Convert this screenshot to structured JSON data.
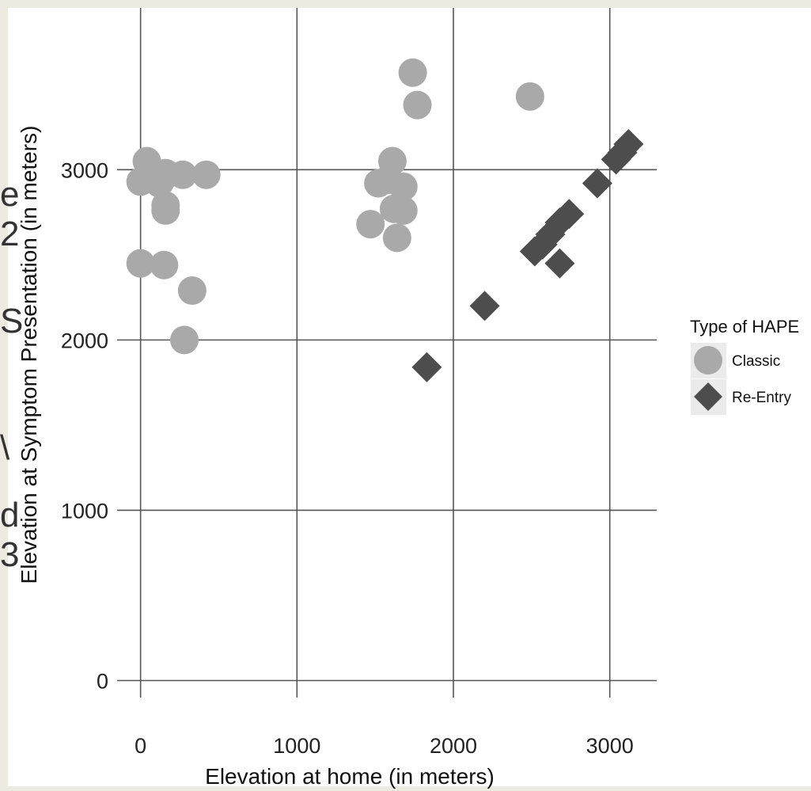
{
  "chart_data": {
    "type": "scatter",
    "title": "",
    "xlabel": "Elevation at home (in meters)",
    "ylabel": "Elevation at Symptom Presentation (in meters)",
    "xlim": [
      -150,
      3300
    ],
    "ylim": [
      -100,
      3950
    ],
    "xticks": [
      0,
      1000,
      2000,
      3000
    ],
    "yticks": [
      0,
      1000,
      2000,
      3000
    ],
    "grid": true,
    "legend": {
      "title": "Type of HAPE",
      "placement": "right"
    },
    "series": [
      {
        "name": "Classic",
        "marker": "circle",
        "color": "#a9a9a9",
        "points": [
          {
            "x": 0,
            "y": 2930
          },
          {
            "x": 40,
            "y": 3050
          },
          {
            "x": 80,
            "y": 2980
          },
          {
            "x": 120,
            "y": 2920
          },
          {
            "x": 140,
            "y": 2950
          },
          {
            "x": 160,
            "y": 2980
          },
          {
            "x": 160,
            "y": 2790
          },
          {
            "x": 160,
            "y": 2760
          },
          {
            "x": 270,
            "y": 2970
          },
          {
            "x": 420,
            "y": 2970
          },
          {
            "x": 0,
            "y": 2450
          },
          {
            "x": 150,
            "y": 2440
          },
          {
            "x": 330,
            "y": 2290
          },
          {
            "x": 280,
            "y": 2000
          },
          {
            "x": 1470,
            "y": 2680
          },
          {
            "x": 1520,
            "y": 2920
          },
          {
            "x": 1580,
            "y": 2940
          },
          {
            "x": 1610,
            "y": 3050
          },
          {
            "x": 1620,
            "y": 2770
          },
          {
            "x": 1640,
            "y": 2600
          },
          {
            "x": 1680,
            "y": 2900
          },
          {
            "x": 1680,
            "y": 2760
          },
          {
            "x": 1740,
            "y": 3570
          },
          {
            "x": 1770,
            "y": 3380
          },
          {
            "x": 2490,
            "y": 3430
          }
        ]
      },
      {
        "name": "Re-Entry",
        "marker": "diamond",
        "color": "#4d4d4d",
        "points": [
          {
            "x": 1830,
            "y": 1840
          },
          {
            "x": 2200,
            "y": 2200
          },
          {
            "x": 2520,
            "y": 2520
          },
          {
            "x": 2570,
            "y": 2560
          },
          {
            "x": 2620,
            "y": 2620
          },
          {
            "x": 2680,
            "y": 2690
          },
          {
            "x": 2740,
            "y": 2740
          },
          {
            "x": 2680,
            "y": 2450
          },
          {
            "x": 2920,
            "y": 2920
          },
          {
            "x": 3040,
            "y": 3060
          },
          {
            "x": 3080,
            "y": 3100
          },
          {
            "x": 3120,
            "y": 3150
          }
        ]
      }
    ]
  },
  "background_glyphs": [
    "e",
    "2",
    "S",
    "\\",
    "d",
    "3"
  ]
}
